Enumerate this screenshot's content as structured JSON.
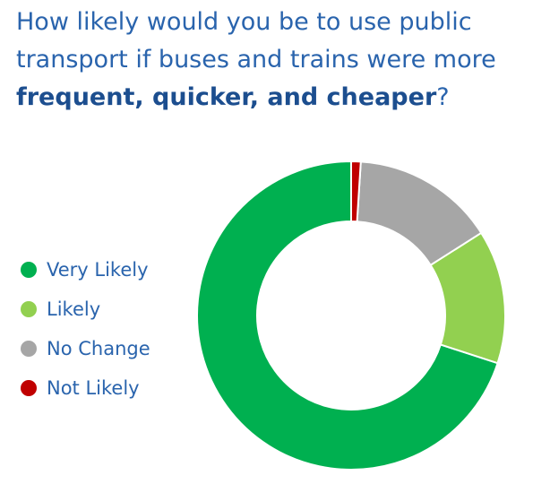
{
  "chart_data": {
    "type": "donut",
    "title_parts": [
      "How likely would you be to use public transport if buses and trains were more",
      "frequent, quicker, and cheaper",
      "?"
    ],
    "categories": [
      "Very Likely",
      "Likely",
      "No Change",
      "Not Likely"
    ],
    "values": [
      70,
      14,
      15,
      1
    ],
    "colors": [
      "#00b050",
      "#92d050",
      "#a6a6a6",
      "#c00000"
    ]
  }
}
